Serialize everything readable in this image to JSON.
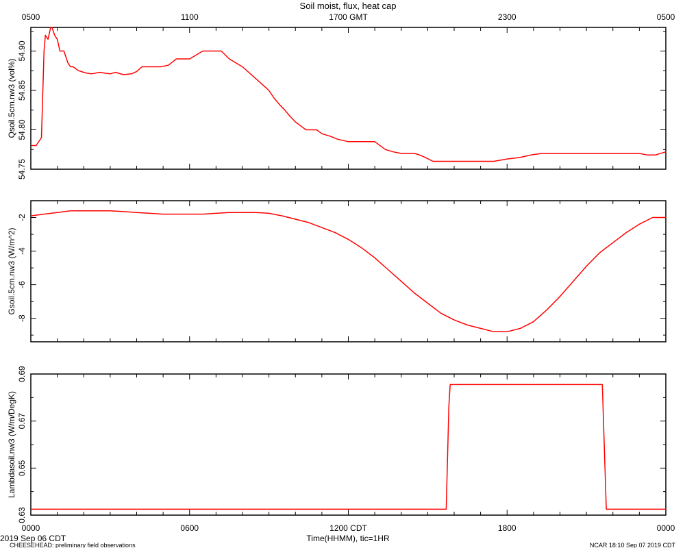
{
  "chart_data": {
    "type": "line",
    "title": "Soil moist, flux, heat cap",
    "line_color": "#ff0000",
    "top_axis": {
      "labels": [
        "0500",
        "1100",
        "1700 GMT",
        "2300",
        "0500"
      ]
    },
    "bottom_axis": {
      "labels": [
        "0000",
        "0600",
        "1200 CDT",
        "1800",
        "0000"
      ],
      "xlabel": "Time(HHMM), tic=1HR",
      "xlim_hours": [
        0,
        24
      ]
    },
    "footer": {
      "date": "2019 Sep 06 CDT",
      "project": "CHEESEHEAD: preliminary field observations",
      "stamp": "NCAR 18:10 Sep 07 2019 CDT"
    },
    "panels": [
      {
        "name": "Qsoil.5cm.nw3",
        "ylabel": "Qsoil.5cm.nw3 (vol%)",
        "ylim": [
          54.75,
          54.93
        ],
        "yticks": [
          54.75,
          54.8,
          54.85,
          54.9
        ],
        "ytick_labels": [
          "54.75",
          "54.80",
          "54.85",
          "54.90"
        ],
        "x": [
          0,
          0.2,
          0.4,
          0.5,
          0.55,
          0.65,
          0.75,
          0.8,
          0.9,
          1.0,
          1.1,
          1.25,
          1.4,
          1.5,
          1.6,
          1.8,
          2.0,
          2.1,
          2.3,
          2.6,
          2.8,
          3.0,
          3.2,
          3.5,
          3.8,
          4.0,
          4.2,
          4.6,
          4.9,
          5.2,
          5.5,
          6.0,
          6.5,
          6.8,
          7.2,
          7.5,
          8.0,
          8.5,
          9.0,
          9.2,
          9.4,
          9.6,
          9.8,
          10.0,
          10.2,
          10.4,
          10.6,
          10.8,
          11.0,
          11.3,
          11.6,
          12.0,
          12.5,
          13.0,
          13.4,
          13.7,
          14.0,
          14.3,
          14.5,
          14.7,
          14.9,
          15.2,
          15.6,
          16.0,
          16.5,
          17.0,
          17.5,
          18.0,
          18.5,
          18.9,
          19.3,
          19.7,
          20.0,
          20.5,
          21.0,
          21.5,
          22.0,
          22.5,
          23.0,
          23.3,
          23.6,
          24.0
        ],
        "y": [
          54.78,
          54.78,
          54.79,
          54.9,
          54.92,
          54.915,
          54.93,
          54.93,
          54.92,
          54.915,
          54.9,
          54.9,
          54.885,
          54.88,
          54.88,
          54.875,
          54.873,
          54.872,
          54.871,
          54.873,
          54.872,
          54.871,
          54.873,
          54.87,
          54.871,
          54.874,
          54.88,
          54.88,
          54.88,
          54.882,
          54.89,
          54.89,
          54.9,
          54.9,
          54.9,
          54.89,
          54.88,
          54.865,
          54.85,
          54.84,
          54.832,
          54.825,
          54.817,
          54.81,
          54.805,
          54.8,
          54.8,
          54.8,
          54.795,
          54.792,
          54.788,
          54.785,
          54.785,
          54.785,
          54.775,
          54.772,
          54.77,
          54.77,
          54.77,
          54.768,
          54.765,
          54.76,
          54.76,
          54.76,
          54.76,
          54.76,
          54.76,
          54.763,
          54.765,
          54.768,
          54.77,
          54.77,
          54.77,
          54.77,
          54.77,
          54.77,
          54.77,
          54.77,
          54.77,
          54.768,
          54.768,
          54.772
        ]
      },
      {
        "name": "Gsoil.5cm.nw3",
        "ylabel": "Gsoil.5cm.nw3 (W/m^2)",
        "ylim": [
          -9.4,
          -1.0
        ],
        "yticks": [
          -8,
          -6,
          -4,
          -2
        ],
        "ytick_labels": [
          "-8",
          "-6",
          "-4",
          "-2"
        ],
        "x": [
          0,
          0.5,
          1.0,
          1.5,
          2.0,
          2.5,
          3.0,
          3.5,
          4.0,
          4.5,
          5.0,
          5.5,
          6.0,
          6.5,
          7.0,
          7.5,
          8.0,
          8.5,
          9.0,
          9.5,
          10.0,
          10.5,
          11.0,
          11.5,
          12.0,
          12.5,
          13.0,
          13.5,
          14.0,
          14.5,
          15.0,
          15.5,
          16.0,
          16.5,
          17.0,
          17.5,
          18.0,
          18.5,
          19.0,
          19.5,
          20.0,
          20.5,
          21.0,
          21.5,
          22.0,
          22.5,
          23.0,
          23.5,
          24.0
        ],
        "y": [
          -1.9,
          -1.8,
          -1.7,
          -1.6,
          -1.6,
          -1.6,
          -1.6,
          -1.65,
          -1.7,
          -1.75,
          -1.8,
          -1.8,
          -1.8,
          -1.8,
          -1.75,
          -1.7,
          -1.7,
          -1.7,
          -1.75,
          -1.9,
          -2.1,
          -2.3,
          -2.6,
          -2.9,
          -3.3,
          -3.8,
          -4.4,
          -5.1,
          -5.8,
          -6.5,
          -7.1,
          -7.7,
          -8.1,
          -8.4,
          -8.6,
          -8.8,
          -8.8,
          -8.6,
          -8.2,
          -7.5,
          -6.7,
          -5.8,
          -4.9,
          -4.1,
          -3.5,
          -2.9,
          -2.4,
          -2.0,
          -2.0
        ]
      },
      {
        "name": "Lambdasoil.nw3",
        "ylabel": "Lambdasoil.nw3 (W/m/DegK)",
        "ylim": [
          0.63,
          0.69
        ],
        "yticks": [
          0.63,
          0.65,
          0.67,
          0.69
        ],
        "ytick_labels": [
          "0.63",
          "0.65",
          "0.67",
          "0.69"
        ],
        "x": [
          0,
          15.7,
          15.8,
          15.85,
          21.6,
          21.75,
          24
        ],
        "y": [
          0.6325,
          0.6325,
          0.6765,
          0.6855,
          0.6855,
          0.6325,
          0.6325
        ]
      }
    ]
  }
}
